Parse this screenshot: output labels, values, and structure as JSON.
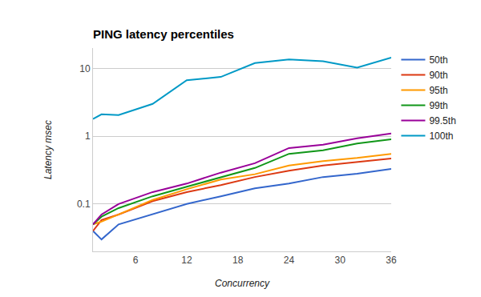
{
  "chart_data": {
    "type": "line",
    "title": "PING latency percentiles",
    "x_label": "Concurrency",
    "y_label": "Latency msec",
    "x": [
      1,
      2,
      4,
      8,
      12,
      16,
      20,
      24,
      28,
      32,
      36
    ],
    "series": [
      {
        "name": "50th",
        "color": "#3366cc",
        "values": [
          0.04,
          0.03,
          0.05,
          0.07,
          0.1,
          0.13,
          0.17,
          0.2,
          0.25,
          0.28,
          0.33
        ]
      },
      {
        "name": "90th",
        "color": "#dc3912",
        "values": [
          0.04,
          0.058,
          0.07,
          0.11,
          0.15,
          0.19,
          0.25,
          0.31,
          0.37,
          0.42,
          0.47
        ]
      },
      {
        "name": "95th",
        "color": "#ff9900",
        "values": [
          0.05,
          0.055,
          0.07,
          0.115,
          0.165,
          0.23,
          0.275,
          0.37,
          0.43,
          0.48,
          0.55
        ]
      },
      {
        "name": "99th",
        "color": "#109618",
        "values": [
          0.05,
          0.065,
          0.087,
          0.13,
          0.18,
          0.25,
          0.34,
          0.55,
          0.62,
          0.78,
          0.9
        ]
      },
      {
        "name": "99.5th",
        "color": "#990099",
        "values": [
          0.05,
          0.07,
          0.1,
          0.15,
          0.2,
          0.29,
          0.4,
          0.67,
          0.75,
          0.93,
          1.1
        ]
      },
      {
        "name": "100th",
        "color": "#0099c6",
        "values": [
          1.8,
          2.1,
          2.05,
          3.0,
          6.7,
          7.5,
          12,
          13.6,
          12.8,
          10.3,
          14.4
        ]
      }
    ],
    "xlim": [
      1,
      36
    ],
    "xticks": [
      6,
      12,
      18,
      24,
      30,
      36
    ],
    "ylim": [
      0.02,
      20
    ],
    "yticks": [
      0.1,
      1,
      10
    ],
    "log": "y",
    "grid": true,
    "legend": "right"
  }
}
